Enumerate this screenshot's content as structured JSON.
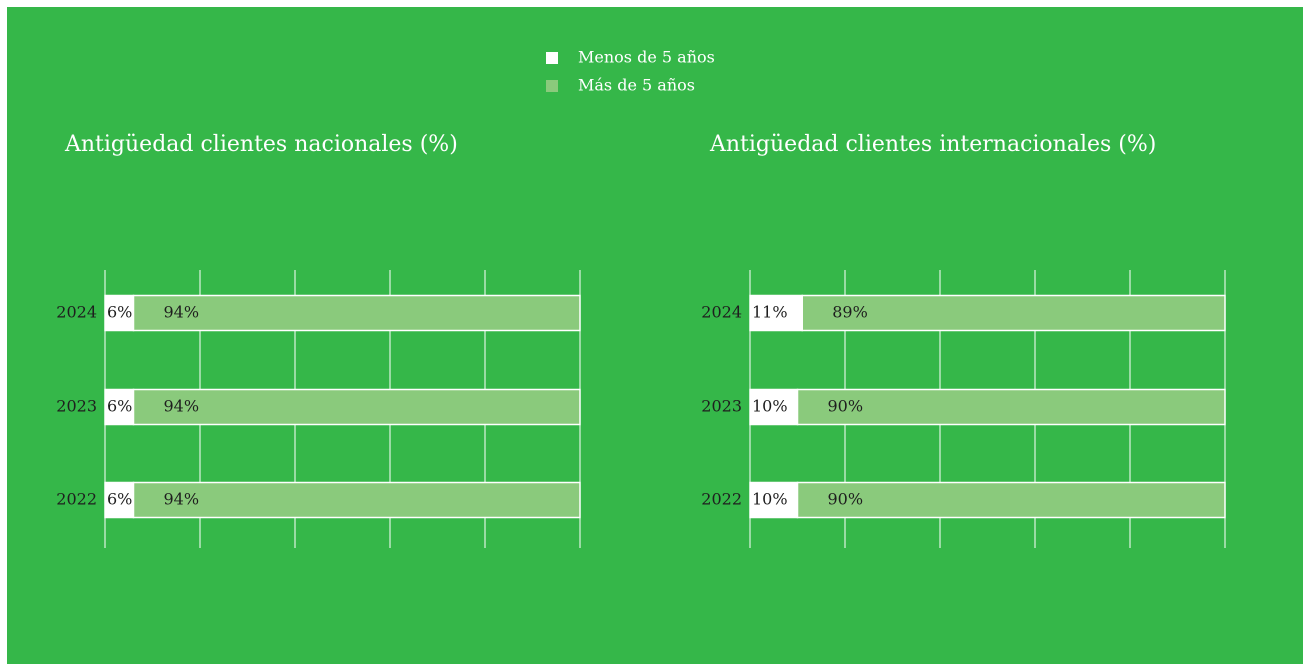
{
  "chart_data": [
    {
      "type": "stacked-barh",
      "title": "Antigüedad clientes nacionales (%)",
      "categories": [
        "2024",
        "2023",
        "2022"
      ],
      "series": [
        {
          "name": "Menos de 5 años",
          "color": "#ffffff",
          "values": [
            6,
            6,
            6
          ],
          "value_labels": [
            "6%",
            "6%",
            "6%"
          ]
        },
        {
          "name": "Más de 5 años",
          "color": "#8aca7c",
          "values": [
            94,
            94,
            94
          ],
          "value_labels": [
            "94%",
            "94%",
            "94%"
          ]
        }
      ],
      "xlim": [
        0,
        100
      ],
      "xticks": [
        0,
        20,
        40,
        60,
        80,
        100
      ],
      "grid": true
    },
    {
      "type": "stacked-barh",
      "title": "Antigüedad clientes internacionales (%)",
      "categories": [
        "2024",
        "2023",
        "2022"
      ],
      "series": [
        {
          "name": "Menos de 5 años",
          "color": "#ffffff",
          "values": [
            11,
            10,
            10
          ],
          "value_labels": [
            "11%",
            "10%",
            "10%"
          ]
        },
        {
          "name": "Más de 5 años",
          "color": "#8aca7c",
          "values": [
            89,
            90,
            90
          ],
          "value_labels": [
            "89%",
            "90%",
            "90%"
          ]
        }
      ],
      "xlim": [
        0,
        100
      ],
      "xticks": [
        0,
        20,
        40,
        60,
        80,
        100
      ],
      "grid": true
    }
  ]
}
